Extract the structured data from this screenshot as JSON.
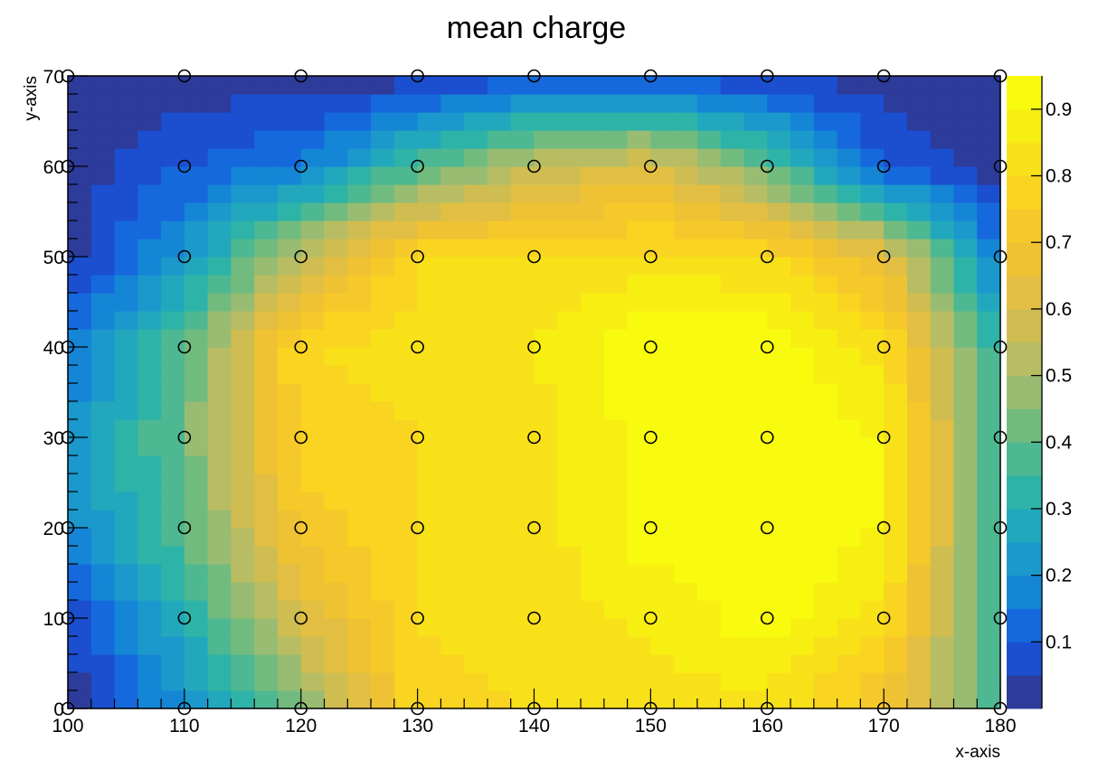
{
  "chart_data": {
    "type": "heatmap",
    "title": "mean charge",
    "xlabel": "x-axis",
    "ylabel": "y-axis",
    "xlim": [
      100,
      180
    ],
    "ylim": [
      0,
      70
    ],
    "x_ticks": [
      "100",
      "110",
      "120",
      "130",
      "140",
      "150",
      "160",
      "170",
      "180"
    ],
    "y_ticks": [
      "0",
      "10",
      "20",
      "30",
      "40",
      "50",
      "60",
      "70"
    ],
    "colorbar": {
      "range": [
        0.0,
        0.95
      ],
      "ticks": [
        "0.1",
        "0.2",
        "0.3",
        "0.4",
        "0.5",
        "0.6",
        "0.7",
        "0.8",
        "0.9"
      ],
      "palette": [
        "#2d3b9a",
        "#1b4fd0",
        "#1569dc",
        "#1585d6",
        "#1b98cc",
        "#22a8bd",
        "#2eb3a8",
        "#4db891",
        "#72bb7f",
        "#98bc72",
        "#b8bd63",
        "#cfbd52",
        "#e2bf42",
        "#efc234",
        "#f6c92a",
        "#f9d421",
        "#f9e11a",
        "#f8ef12",
        "#f9fb0e"
      ]
    },
    "points": {
      "x": [
        100,
        110,
        120,
        130,
        140,
        150,
        160,
        170,
        180
      ],
      "y": [
        0,
        10,
        20,
        30,
        40,
        50,
        60,
        70
      ],
      "marker": "open-circle"
    },
    "grid_values": {
      "x": [
        100,
        110,
        120,
        130,
        140,
        150,
        160,
        170,
        180
      ],
      "y": [
        0,
        10,
        20,
        30,
        40,
        50,
        60,
        70
      ],
      "z": [
        [
          0.02,
          0.2,
          0.45,
          0.78,
          0.8,
          0.82,
          0.83,
          0.7,
          0.35
        ],
        [
          0.05,
          0.3,
          0.6,
          0.8,
          0.82,
          0.86,
          0.93,
          0.82,
          0.3
        ],
        [
          0.18,
          0.4,
          0.72,
          0.8,
          0.82,
          0.93,
          0.95,
          0.9,
          0.32
        ],
        [
          0.2,
          0.42,
          0.77,
          0.8,
          0.82,
          0.93,
          0.95,
          0.9,
          0.32
        ],
        [
          0.15,
          0.4,
          0.8,
          0.82,
          0.85,
          0.95,
          0.95,
          0.82,
          0.3
        ],
        [
          0.02,
          0.22,
          0.55,
          0.8,
          0.8,
          0.82,
          0.8,
          0.65,
          0.15
        ],
        [
          0.02,
          0.1,
          0.15,
          0.38,
          0.55,
          0.62,
          0.4,
          0.1,
          0.02
        ],
        [
          0.02,
          0.02,
          0.02,
          0.02,
          0.08,
          0.08,
          0.05,
          0.02,
          0.02
        ]
      ]
    },
    "legend": "none",
    "grid": false
  }
}
